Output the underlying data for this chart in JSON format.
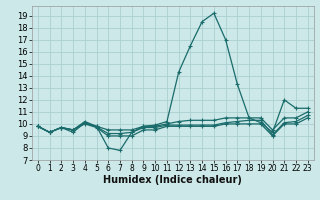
{
  "xlabel": "Humidex (Indice chaleur)",
  "background_color": "#cce8e8",
  "line_color": "#1a6b6b",
  "grid_color": "#aad0d0",
  "xlim": [
    -0.5,
    23.5
  ],
  "ylim": [
    7,
    19.8
  ],
  "yticks": [
    7,
    8,
    9,
    10,
    11,
    12,
    13,
    14,
    15,
    16,
    17,
    18,
    19
  ],
  "xticks": [
    0,
    1,
    2,
    3,
    4,
    5,
    6,
    7,
    8,
    9,
    10,
    11,
    12,
    13,
    14,
    15,
    16,
    17,
    18,
    19,
    20,
    21,
    22,
    23
  ],
  "lines": [
    {
      "x": [
        0,
        1,
        2,
        3,
        4,
        5,
        6,
        7,
        8,
        9,
        10,
        11,
        12,
        13,
        14,
        15,
        16,
        17,
        18,
        19,
        20,
        21,
        22,
        23
      ],
      "y": [
        9.8,
        9.3,
        9.7,
        9.3,
        10.1,
        9.8,
        8.0,
        7.8,
        9.3,
        9.8,
        9.9,
        10.2,
        14.3,
        16.5,
        18.5,
        19.2,
        17.0,
        13.3,
        10.5,
        10.1,
        9.3,
        12.0,
        11.3,
        11.3
      ]
    },
    {
      "x": [
        0,
        1,
        2,
        3,
        4,
        5,
        6,
        7,
        8,
        9,
        10,
        11,
        12,
        13,
        14,
        15,
        16,
        17,
        18,
        19,
        20,
        21,
        22,
        23
      ],
      "y": [
        9.8,
        9.3,
        9.7,
        9.5,
        10.2,
        9.8,
        9.5,
        9.5,
        9.5,
        9.8,
        9.8,
        10.0,
        10.2,
        10.3,
        10.3,
        10.3,
        10.5,
        10.5,
        10.5,
        10.5,
        9.5,
        10.5,
        10.5,
        11.0
      ]
    },
    {
      "x": [
        0,
        1,
        2,
        3,
        4,
        5,
        6,
        7,
        8,
        9,
        10,
        11,
        12,
        13,
        14,
        15,
        16,
        17,
        18,
        19,
        20,
        21,
        22,
        23
      ],
      "y": [
        9.8,
        9.3,
        9.7,
        9.5,
        10.0,
        9.7,
        9.0,
        9.0,
        9.0,
        9.5,
        9.5,
        9.8,
        9.8,
        9.8,
        9.8,
        9.8,
        10.0,
        10.0,
        10.0,
        10.0,
        9.0,
        10.0,
        10.0,
        10.5
      ]
    },
    {
      "x": [
        0,
        1,
        2,
        3,
        4,
        5,
        6,
        7,
        8,
        9,
        10,
        11,
        12,
        13,
        14,
        15,
        16,
        17,
        18,
        19,
        20,
        21,
        22,
        23
      ],
      "y": [
        9.8,
        9.3,
        9.7,
        9.5,
        10.1,
        9.75,
        9.2,
        9.2,
        9.3,
        9.7,
        9.7,
        9.9,
        9.9,
        9.9,
        9.9,
        9.9,
        10.1,
        10.2,
        10.3,
        10.3,
        9.1,
        10.1,
        10.2,
        10.7
      ]
    }
  ]
}
